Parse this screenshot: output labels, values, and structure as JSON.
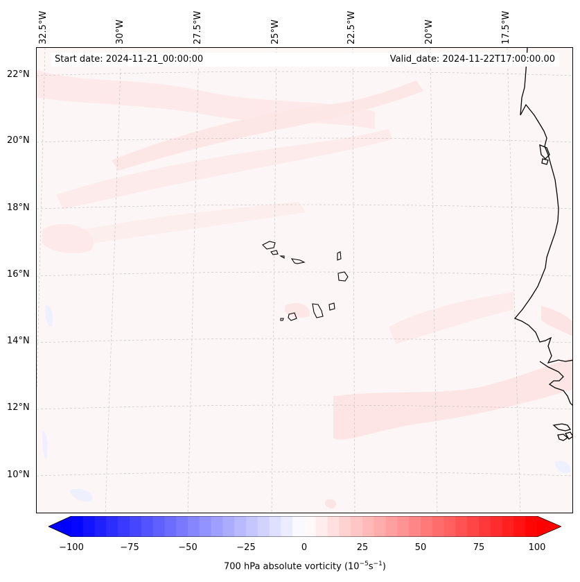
{
  "header": {
    "start_date": "Start date: 2024-11-21_00:00:00",
    "valid_date": "Valid_date: 2024-11-22T17:00:00.00"
  },
  "map": {
    "projection": "lambert-conformal",
    "grid": true,
    "lat_labels": [
      "22°N",
      "20°N",
      "18°N",
      "16°N",
      "14°N",
      "12°N",
      "10°N"
    ],
    "lon_labels": [
      "32.5°W",
      "30°W",
      "27.5°W",
      "25°W",
      "22.5°W",
      "20°W",
      "17.5°W"
    ],
    "field": "700 hPa absolute vorticity",
    "features": [
      "west-african-coastline",
      "cape-verde-islands"
    ],
    "colors": {
      "background_field": "#fdf6f6",
      "positive_band": "#fde6e6",
      "negative_band": "#eef1fd",
      "coastline": "#000000",
      "gridline": "#bbbbbb"
    }
  },
  "colorbar": {
    "min": -100,
    "max": 100,
    "step": 5,
    "extend": "both",
    "colormap": "bwr",
    "ticks": [
      "−100",
      "−75",
      "−50",
      "−25",
      "0",
      "25",
      "50",
      "75",
      "100"
    ],
    "label_text": "700 hPa absolute vorticity (10",
    "label_exp1": "−5",
    "label_unit": "s",
    "label_exp2": "−1",
    "label_close": ")"
  }
}
